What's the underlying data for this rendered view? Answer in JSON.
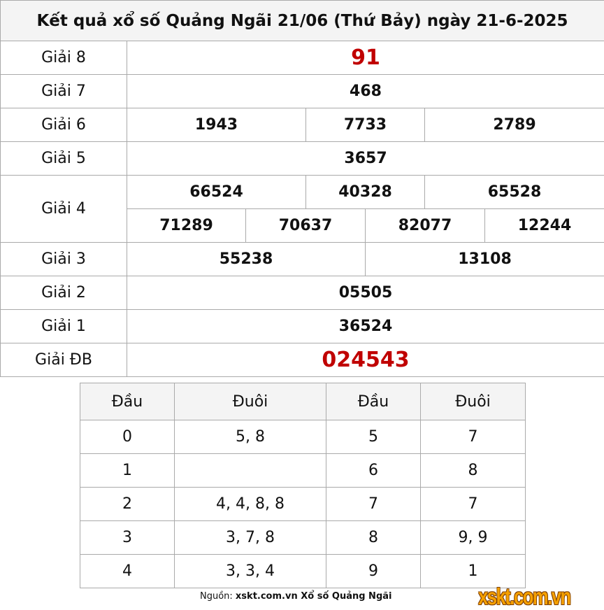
{
  "title": "Kết quả xổ số Quảng Ngãi 21/06 (Thứ Bảy) ngày 21-6-2025",
  "prizes": {
    "g8": {
      "label": "Giải 8",
      "values": [
        "91"
      ]
    },
    "g7": {
      "label": "Giải 7",
      "values": [
        "468"
      ]
    },
    "g6": {
      "label": "Giải 6",
      "values": [
        "1943",
        "7733",
        "2789"
      ]
    },
    "g5": {
      "label": "Giải 5",
      "values": [
        "3657"
      ]
    },
    "g4": {
      "label": "Giải 4",
      "values": [
        "66524",
        "40328",
        "65528",
        "71289",
        "70637",
        "82077",
        "12244"
      ]
    },
    "g3": {
      "label": "Giải 3",
      "values": [
        "55238",
        "13108"
      ]
    },
    "g2": {
      "label": "Giải 2",
      "values": [
        "05505"
      ]
    },
    "g1": {
      "label": "Giải 1",
      "values": [
        "36524"
      ]
    },
    "db": {
      "label": "Giải ĐB",
      "values": [
        "024543"
      ]
    }
  },
  "highlight_color": "#c00000",
  "loto": {
    "headers": [
      "Đầu",
      "Đuôi",
      "Đầu",
      "Đuôi"
    ],
    "rows": [
      [
        "0",
        "5, 8",
        "5",
        "7"
      ],
      [
        "1",
        "",
        "6",
        "8"
      ],
      [
        "2",
        "4, 4, 8, 8",
        "7",
        "7"
      ],
      [
        "3",
        "3, 7, 8",
        "8",
        "9, 9"
      ],
      [
        "4",
        "3, 3, 4",
        "9",
        "1"
      ]
    ]
  },
  "source": {
    "prefix": "Nguồn: ",
    "text": "xskt.com.vn Xổ số Quảng Ngãi"
  },
  "logo": "xskt.com.vn"
}
